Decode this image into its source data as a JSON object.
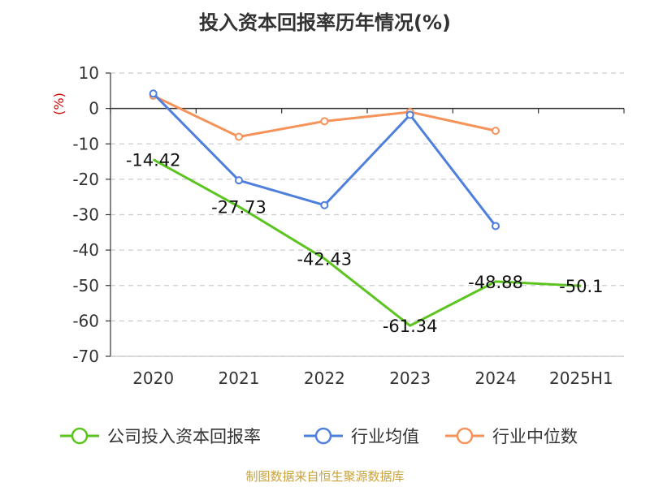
{
  "chart_data": {
    "type": "line",
    "title": "投入资本回报率历年情况(%)",
    "ylabel": "(%)",
    "categories": [
      "2020",
      "2021",
      "2022",
      "2023",
      "2024",
      "2025H1"
    ],
    "ylim": [
      -70,
      10
    ],
    "yticks": [
      10,
      0,
      -10,
      -20,
      -30,
      -40,
      -50,
      -60,
      -70
    ],
    "grid": true,
    "legend_position": "bottom",
    "series": [
      {
        "name": "公司投入资本回报率",
        "color": "#5cc41f",
        "values": [
          -14.42,
          -27.73,
          -42.43,
          -61.34,
          -48.88,
          -50.1
        ],
        "labels": [
          "-14.42",
          "-27.73",
          "-42.43",
          "-61.34",
          "-48.88",
          "-50.1"
        ],
        "markers": false
      },
      {
        "name": "行业均值",
        "color": "#4f7fdc",
        "values": [
          4.2,
          -20.3,
          -27.3,
          -1.8,
          -33.2,
          null
        ],
        "markers": true
      },
      {
        "name": "行业中位数",
        "color": "#f5935a",
        "values": [
          3.6,
          -8.0,
          -3.6,
          -1.0,
          -6.3,
          null
        ],
        "markers": true
      }
    ]
  },
  "source": "制图数据来自恒生聚源数据库"
}
